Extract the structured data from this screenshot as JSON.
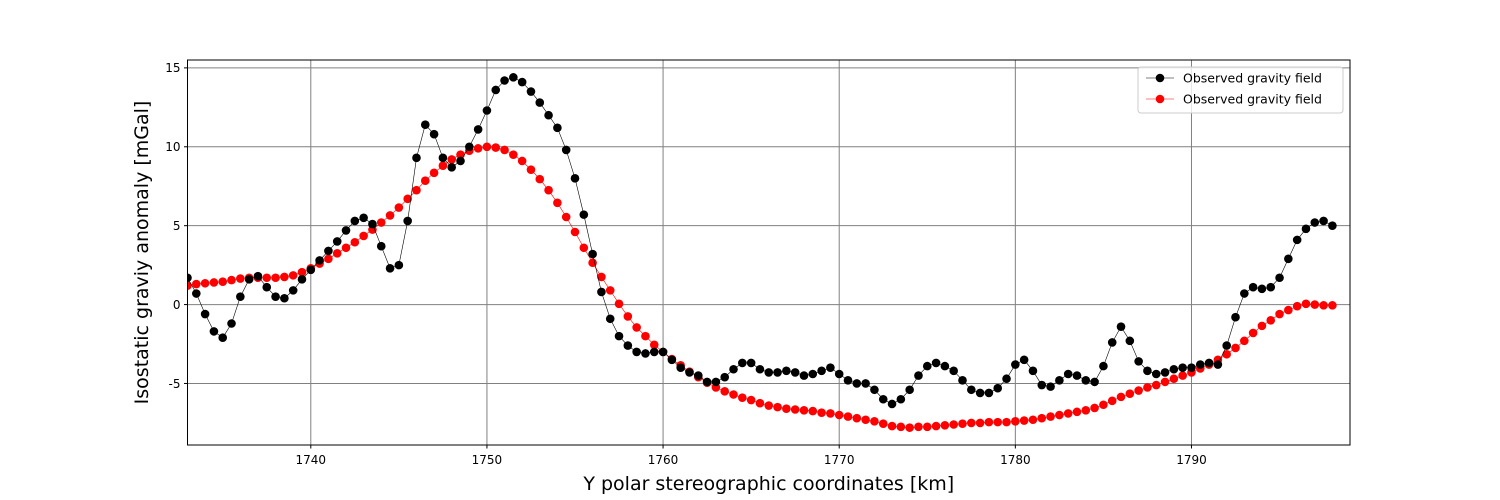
{
  "chart_data": {
    "type": "line",
    "xlabel": "Y polar stereographic coordinates [km]",
    "ylabel": "Isostatic graviy anomaly [mGal]",
    "xlim": [
      1733,
      1799
    ],
    "ylim": [
      -8.9,
      15.5
    ],
    "xticks": [
      1740,
      1750,
      1760,
      1770,
      1780,
      1790
    ],
    "yticks": [
      -5,
      0,
      5,
      10,
      15
    ],
    "grid": true,
    "legend_position": "top-right",
    "series": [
      {
        "name": "Observed gravity field",
        "color": "#000000",
        "marker": "circle",
        "x": [
          1733.0,
          1733.5,
          1734.0,
          1734.5,
          1735.0,
          1735.5,
          1736.0,
          1736.5,
          1737.0,
          1737.5,
          1738.0,
          1738.5,
          1739.0,
          1739.5,
          1740.0,
          1740.5,
          1741.0,
          1741.5,
          1742.0,
          1742.5,
          1743.0,
          1743.5,
          1744.0,
          1744.5,
          1745.0,
          1745.5,
          1746.0,
          1746.5,
          1747.0,
          1747.5,
          1748.0,
          1748.5,
          1749.0,
          1749.5,
          1750.0,
          1750.5,
          1751.0,
          1751.5,
          1752.0,
          1752.5,
          1753.0,
          1753.5,
          1754.0,
          1754.5,
          1755.0,
          1755.5,
          1756.0,
          1756.5,
          1757.0,
          1757.5,
          1758.0,
          1758.5,
          1759.0,
          1759.5,
          1760.0,
          1760.5,
          1761.0,
          1761.5,
          1762.0,
          1762.5,
          1763.0,
          1763.5,
          1764.0,
          1764.5,
          1765.0,
          1765.5,
          1766.0,
          1766.5,
          1767.0,
          1767.5,
          1768.0,
          1768.5,
          1769.0,
          1769.5,
          1770.0,
          1770.5,
          1771.0,
          1771.5,
          1772.0,
          1772.5,
          1773.0,
          1773.5,
          1774.0,
          1774.5,
          1775.0,
          1775.5,
          1776.0,
          1776.5,
          1777.0,
          1777.5,
          1778.0,
          1778.5,
          1779.0,
          1779.5,
          1780.0,
          1780.5,
          1781.0,
          1781.5,
          1782.0,
          1782.5,
          1783.0,
          1783.5,
          1784.0,
          1784.5,
          1785.0,
          1785.5,
          1786.0,
          1786.5,
          1787.0,
          1787.5,
          1788.0,
          1788.5,
          1789.0,
          1789.5,
          1790.0,
          1790.5,
          1791.0,
          1791.5,
          1792.0,
          1792.5,
          1793.0,
          1793.5,
          1794.0,
          1794.5,
          1795.0,
          1795.5,
          1796.0,
          1796.5,
          1797.0,
          1797.5,
          1798.0
        ],
        "y": [
          1.7,
          0.7,
          -0.6,
          -1.7,
          -2.1,
          -1.2,
          0.5,
          1.6,
          1.8,
          1.1,
          0.5,
          0.4,
          0.9,
          1.6,
          2.2,
          2.8,
          3.4,
          4.0,
          4.7,
          5.3,
          5.5,
          5.1,
          3.7,
          2.3,
          2.5,
          5.3,
          9.3,
          11.4,
          10.8,
          9.3,
          8.7,
          9.1,
          10.0,
          11.1,
          12.3,
          13.6,
          14.2,
          14.4,
          14.1,
          13.5,
          12.8,
          12.0,
          11.2,
          9.8,
          8.0,
          5.7,
          3.2,
          0.8,
          -0.9,
          -2.0,
          -2.6,
          -3.0,
          -3.1,
          -3.0,
          -3.0,
          -3.5,
          -4.0,
          -4.3,
          -4.5,
          -4.9,
          -4.9,
          -4.6,
          -4.1,
          -3.7,
          -3.7,
          -4.1,
          -4.3,
          -4.3,
          -4.2,
          -4.3,
          -4.5,
          -4.4,
          -4.2,
          -4.0,
          -4.4,
          -4.8,
          -5.0,
          -5.0,
          -5.4,
          -6.0,
          -6.3,
          -6.0,
          -5.4,
          -4.5,
          -3.9,
          -3.7,
          -3.9,
          -4.2,
          -4.8,
          -5.4,
          -5.6,
          -5.6,
          -5.3,
          -4.7,
          -3.8,
          -3.5,
          -4.2,
          -5.1,
          -5.2,
          -4.8,
          -4.4,
          -4.5,
          -4.8,
          -4.9,
          -3.9,
          -2.4,
          -1.4,
          -2.3,
          -3.6,
          -4.2,
          -4.4,
          -4.3,
          -4.1,
          -4.0,
          -4.0,
          -3.8,
          -3.7,
          -3.8,
          -2.6,
          -0.8,
          0.7,
          1.1,
          1.0,
          1.1,
          1.7,
          2.9,
          4.1,
          4.8,
          5.2,
          5.3,
          5.0
        ]
      },
      {
        "name": "Observed gravity field",
        "color": "#ff0000",
        "marker": "circle",
        "x": [
          1733.0,
          1733.5,
          1734.0,
          1734.5,
          1735.0,
          1735.5,
          1736.0,
          1736.5,
          1737.0,
          1737.5,
          1738.0,
          1738.5,
          1739.0,
          1739.5,
          1740.0,
          1740.5,
          1741.0,
          1741.5,
          1742.0,
          1742.5,
          1743.0,
          1743.5,
          1744.0,
          1744.5,
          1745.0,
          1745.5,
          1746.0,
          1746.5,
          1747.0,
          1747.5,
          1748.0,
          1748.5,
          1749.0,
          1749.5,
          1750.0,
          1750.5,
          1751.0,
          1751.5,
          1752.0,
          1752.5,
          1753.0,
          1753.5,
          1754.0,
          1754.5,
          1755.0,
          1755.5,
          1756.0,
          1756.5,
          1757.0,
          1757.5,
          1758.0,
          1758.5,
          1759.0,
          1759.5,
          1760.0,
          1760.5,
          1761.0,
          1761.5,
          1762.0,
          1762.5,
          1763.0,
          1763.5,
          1764.0,
          1764.5,
          1765.0,
          1765.5,
          1766.0,
          1766.5,
          1767.0,
          1767.5,
          1768.0,
          1768.5,
          1769.0,
          1769.5,
          1770.0,
          1770.5,
          1771.0,
          1771.5,
          1772.0,
          1772.5,
          1773.0,
          1773.5,
          1774.0,
          1774.5,
          1775.0,
          1775.5,
          1776.0,
          1776.5,
          1777.0,
          1777.5,
          1778.0,
          1778.5,
          1779.0,
          1779.5,
          1780.0,
          1780.5,
          1781.0,
          1781.5,
          1782.0,
          1782.5,
          1783.0,
          1783.5,
          1784.0,
          1784.5,
          1785.0,
          1785.5,
          1786.0,
          1786.5,
          1787.0,
          1787.5,
          1788.0,
          1788.5,
          1789.0,
          1789.5,
          1790.0,
          1790.5,
          1791.0,
          1791.5,
          1792.0,
          1792.5,
          1793.0,
          1793.5,
          1794.0,
          1794.5,
          1795.0,
          1795.5,
          1796.0,
          1796.5,
          1797.0,
          1797.5,
          1798.0
        ],
        "y": [
          1.2,
          1.3,
          1.35,
          1.4,
          1.45,
          1.55,
          1.65,
          1.7,
          1.7,
          1.7,
          1.7,
          1.75,
          1.85,
          2.05,
          2.3,
          2.6,
          2.9,
          3.25,
          3.6,
          3.95,
          4.35,
          4.75,
          5.2,
          5.65,
          6.15,
          6.7,
          7.25,
          7.85,
          8.35,
          8.8,
          9.2,
          9.5,
          9.75,
          9.9,
          10.0,
          9.95,
          9.8,
          9.5,
          9.1,
          8.55,
          7.95,
          7.25,
          6.45,
          5.55,
          4.6,
          3.6,
          2.65,
          1.75,
          0.9,
          0.05,
          -0.75,
          -1.45,
          -2.0,
          -2.55,
          -3.0,
          -3.45,
          -3.85,
          -4.25,
          -4.6,
          -4.95,
          -5.25,
          -5.5,
          -5.7,
          -5.9,
          -6.05,
          -6.25,
          -6.4,
          -6.5,
          -6.6,
          -6.65,
          -6.7,
          -6.75,
          -6.85,
          -6.9,
          -7.0,
          -7.1,
          -7.2,
          -7.3,
          -7.4,
          -7.55,
          -7.7,
          -7.75,
          -7.8,
          -7.75,
          -7.75,
          -7.7,
          -7.65,
          -7.6,
          -7.55,
          -7.5,
          -7.5,
          -7.45,
          -7.45,
          -7.45,
          -7.4,
          -7.35,
          -7.3,
          -7.2,
          -7.1,
          -7.0,
          -6.9,
          -6.8,
          -6.7,
          -6.55,
          -6.35,
          -6.1,
          -5.85,
          -5.65,
          -5.45,
          -5.25,
          -5.1,
          -4.9,
          -4.7,
          -4.5,
          -4.3,
          -4.05,
          -3.8,
          -3.5,
          -3.15,
          -2.75,
          -2.3,
          -1.8,
          -1.35,
          -1.0,
          -0.6,
          -0.35,
          -0.1,
          0.05,
          0.0,
          -0.05,
          -0.05
        ]
      }
    ]
  }
}
